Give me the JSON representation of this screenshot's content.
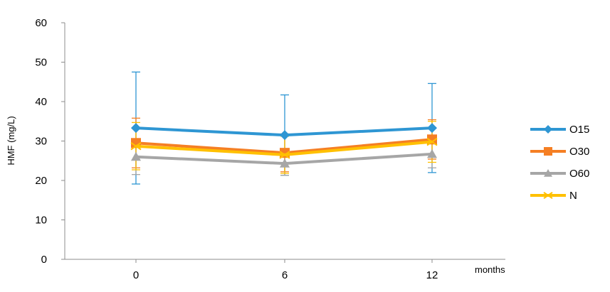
{
  "chart_data": {
    "type": "line",
    "title": "",
    "ylabel": "HMF (mg/L)",
    "xlabel": "months",
    "categories": [
      "0",
      "6",
      "12"
    ],
    "ylim": [
      0,
      60
    ],
    "yticks": [
      "0",
      "10",
      "20",
      "30",
      "40",
      "50",
      "60"
    ],
    "grid": false,
    "legend_position": "right",
    "series": [
      {
        "name": "O15",
        "values": [
          33.3,
          31.5,
          33.3
        ],
        "error": [
          14.2,
          10.2,
          11.3
        ],
        "color": "#2E96D3",
        "marker": "diamond"
      },
      {
        "name": "O30",
        "values": [
          29.5,
          27.0,
          30.4
        ],
        "error": [
          6.3,
          4.8,
          5.0
        ],
        "color": "#F57F24",
        "marker": "square"
      },
      {
        "name": "O60",
        "values": [
          26.0,
          24.3,
          26.7
        ],
        "error": [
          4.5,
          3.0,
          3.5
        ],
        "color": "#A6A6A6",
        "marker": "triangle"
      },
      {
        "name": "N",
        "values": [
          28.7,
          26.5,
          29.8
        ],
        "error": [
          6.0,
          4.7,
          5.2
        ],
        "color": "#FFC000",
        "marker": "x"
      }
    ]
  }
}
